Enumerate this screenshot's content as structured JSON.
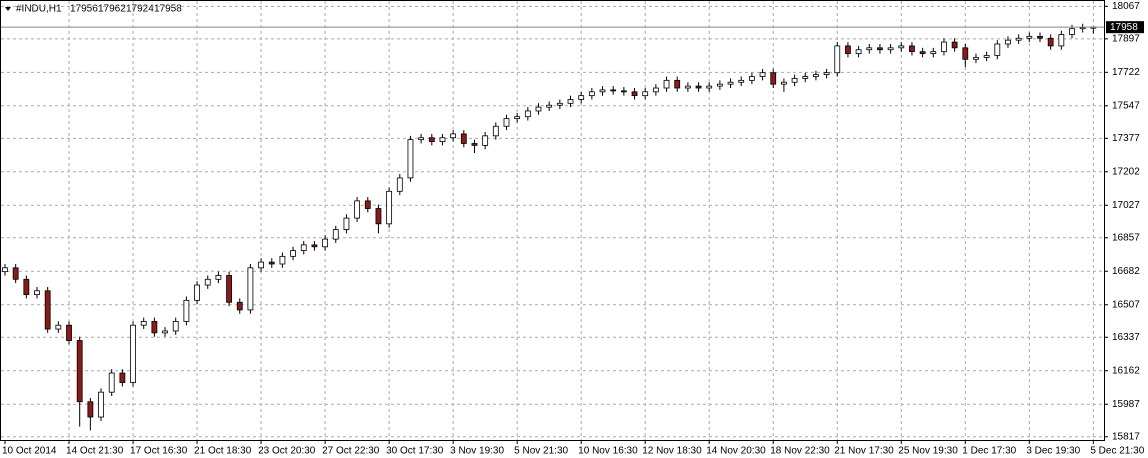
{
  "symbol": "#INDU,H1",
  "chart_data": {
    "type": "candlestick",
    "up_color": "#ffffff",
    "down_color": "#8b1a1a",
    "outline_color": "#000000",
    "grid": true,
    "categories": [
      "10 Oct 2014",
      null,
      null,
      null,
      null,
      null,
      "14 Oct 21:30",
      null,
      null,
      null,
      null,
      null,
      "17 Oct 16:30",
      null,
      null,
      null,
      null,
      null,
      "21 Oct 18:30",
      null,
      null,
      null,
      null,
      null,
      "23 Oct 20:30",
      null,
      null,
      null,
      null,
      null,
      "27 Oct 22:30",
      null,
      null,
      null,
      null,
      null,
      "30 Oct 17:30",
      null,
      null,
      null,
      null,
      null,
      "3 Nov 19:30",
      null,
      null,
      null,
      null,
      null,
      "5 Nov 21:30",
      null,
      null,
      null,
      null,
      null,
      "10 Nov 16:30",
      null,
      null,
      null,
      null,
      null,
      "12 Nov 18:30",
      null,
      null,
      null,
      null,
      null,
      "14 Nov 20:30",
      null,
      null,
      null,
      null,
      null,
      "18 Nov 22:30",
      null,
      null,
      null,
      null,
      null,
      "21 Nov 17:30",
      null,
      null,
      null,
      null,
      null,
      "25 Nov 19:30",
      null,
      null,
      null,
      null,
      null,
      "1 Dec 17:30",
      null,
      null,
      null,
      null,
      null,
      "3 Dec 19:30",
      null,
      null,
      null,
      null,
      null,
      "5 Dec 21:30"
    ],
    "open": [
      16680,
      16700,
      16640,
      16560,
      16580,
      16380,
      16400,
      16320,
      16000,
      15920,
      16050,
      16150,
      16100,
      16400,
      16420,
      16360,
      16370,
      16420,
      16530,
      16610,
      16640,
      16660,
      16520,
      16480,
      16700,
      16730,
      16720,
      16760,
      16790,
      16820,
      16810,
      16850,
      16900,
      16960,
      17050,
      17010,
      16930,
      17100,
      17170,
      17370,
      17380,
      17360,
      17380,
      17400,
      17350,
      17340,
      17390,
      17440,
      17480,
      17490,
      17520,
      17540,
      17550,
      17560,
      17580,
      17600,
      17620,
      17630,
      17625,
      17620,
      17600,
      17620,
      17640,
      17680,
      17640,
      17650,
      17640,
      17650,
      17660,
      17670,
      17680,
      17700,
      17720,
      17660,
      17670,
      17690,
      17700,
      17710,
      17720,
      17860,
      17820,
      17840,
      17850,
      17840,
      17850,
      17860,
      17830,
      17820,
      17830,
      17880,
      17850,
      17790,
      17800,
      17810,
      17870,
      17890,
      17900,
      17910,
      17900,
      17860,
      17920,
      17950,
      17956
    ],
    "high": [
      16720,
      16720,
      16660,
      16600,
      16600,
      16420,
      16420,
      16340,
      16020,
      16070,
      16170,
      16170,
      16420,
      16440,
      16440,
      16390,
      16440,
      16550,
      16630,
      16660,
      16680,
      16680,
      16540,
      16720,
      16750,
      16750,
      16780,
      16810,
      16840,
      16840,
      16870,
      16920,
      16980,
      17070,
      17070,
      17030,
      17120,
      17190,
      17390,
      17400,
      17400,
      17400,
      17420,
      17420,
      17370,
      17410,
      17460,
      17500,
      17510,
      17540,
      17560,
      17570,
      17580,
      17600,
      17620,
      17640,
      17650,
      17650,
      17645,
      17640,
      17640,
      17660,
      17700,
      17700,
      17670,
      17670,
      17670,
      17680,
      17690,
      17700,
      17720,
      17740,
      17740,
      17690,
      17710,
      17720,
      17730,
      17740,
      17880,
      17880,
      17860,
      17870,
      17870,
      17870,
      17880,
      17880,
      17850,
      17850,
      17900,
      17900,
      17870,
      17820,
      17830,
      17890,
      17910,
      17920,
      17930,
      17930,
      17920,
      17940,
      17970,
      17976,
      17962
    ],
    "low": [
      16660,
      16620,
      16540,
      16540,
      16360,
      16360,
      16300,
      15870,
      15850,
      15900,
      16030,
      16080,
      16080,
      16380,
      16340,
      16340,
      16350,
      16400,
      16510,
      16590,
      16620,
      16500,
      16460,
      16460,
      16680,
      16700,
      16700,
      16740,
      16770,
      16790,
      16790,
      16830,
      16880,
      16940,
      16990,
      16880,
      16910,
      17080,
      17150,
      17350,
      17340,
      17340,
      17360,
      17330,
      17300,
      17320,
      17370,
      17420,
      17460,
      17470,
      17500,
      17520,
      17530,
      17540,
      17560,
      17580,
      17600,
      17605,
      17600,
      17580,
      17580,
      17600,
      17620,
      17620,
      17620,
      17620,
      17620,
      17630,
      17640,
      17650,
      17660,
      17680,
      17640,
      17620,
      17650,
      17670,
      17680,
      17690,
      17700,
      17800,
      17800,
      17820,
      17820,
      17820,
      17830,
      17810,
      17800,
      17800,
      17810,
      17830,
      17750,
      17770,
      17780,
      17790,
      17850,
      17870,
      17880,
      17880,
      17840,
      17840,
      17900,
      17930,
      17924
    ],
    "close": [
      16700,
      16640,
      16560,
      16580,
      16380,
      16400,
      16320,
      16000,
      15920,
      16050,
      16150,
      16100,
      16400,
      16420,
      16360,
      16370,
      16420,
      16530,
      16610,
      16640,
      16660,
      16520,
      16480,
      16700,
      16730,
      16720,
      16760,
      16790,
      16820,
      16810,
      16850,
      16900,
      16960,
      17050,
      17010,
      16930,
      17100,
      17170,
      17370,
      17380,
      17360,
      17380,
      17400,
      17350,
      17340,
      17390,
      17440,
      17480,
      17490,
      17520,
      17540,
      17550,
      17560,
      17580,
      17600,
      17620,
      17630,
      17625,
      17620,
      17600,
      17620,
      17640,
      17680,
      17640,
      17650,
      17640,
      17650,
      17660,
      17670,
      17680,
      17700,
      17720,
      17660,
      17670,
      17690,
      17700,
      17710,
      17720,
      17860,
      17820,
      17840,
      17850,
      17840,
      17850,
      17860,
      17830,
      17820,
      17830,
      17880,
      17850,
      17790,
      17800,
      17810,
      17870,
      17890,
      17900,
      17910,
      17900,
      17860,
      17920,
      17950,
      17956,
      17958
    ],
    "ylim": [
      15800,
      18100
    ],
    "yticks": [
      18067,
      17897,
      17722,
      17547,
      17377,
      17202,
      17027,
      16857,
      16682,
      16507,
      16337,
      16162,
      15987,
      15817
    ]
  }
}
